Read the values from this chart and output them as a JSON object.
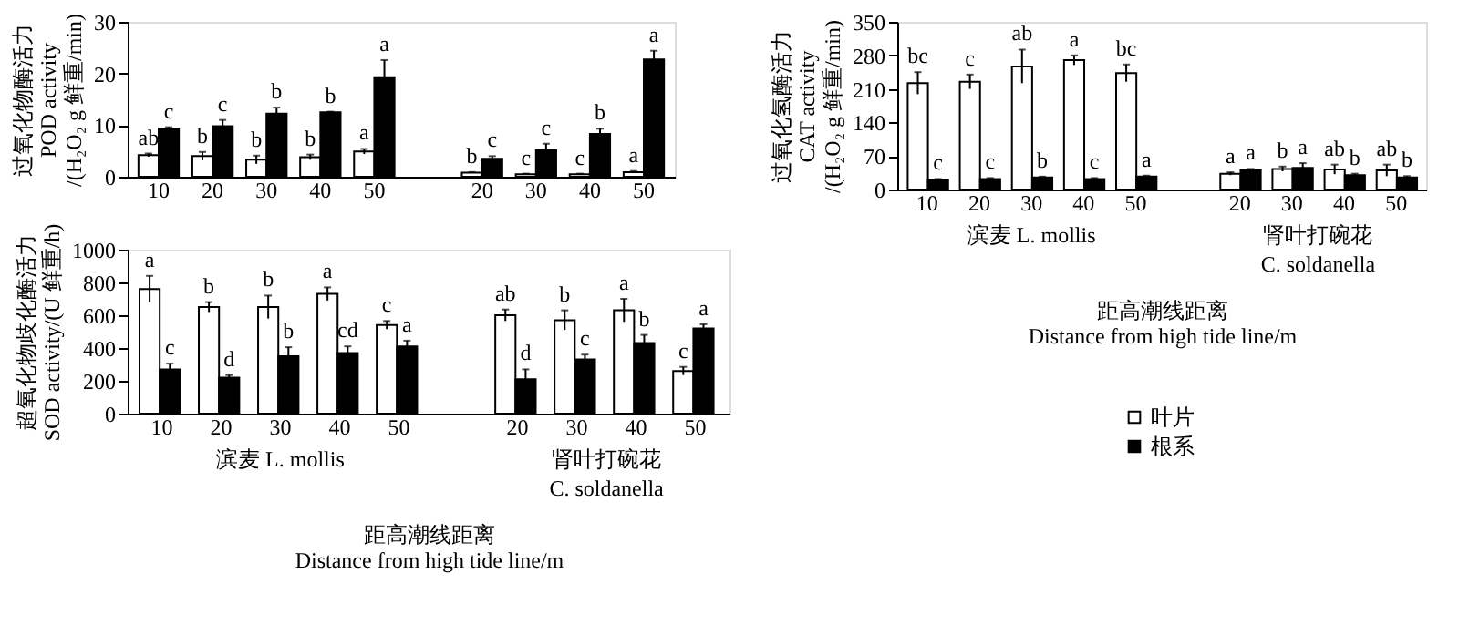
{
  "chart_data": [
    {
      "type": "bar",
      "ylabel": "过氧化物酶活力\nPOD activity\n/(H₂O₂ g 鲜重/min)",
      "legend": "bottom",
      "categories": [
        "10",
        "20",
        "30",
        "40",
        "50",
        null,
        "20",
        "30",
        "40",
        "50"
      ],
      "ylim": [
        0,
        30
      ],
      "yticks": [
        0,
        10,
        20,
        30
      ],
      "series": [
        {
          "name": "叶片",
          "color": "#ffffff",
          "values": [
            4.2,
            4.0,
            3.3,
            3.8,
            4.9,
            null,
            0.8,
            0.5,
            0.5,
            0.9
          ],
          "errors": [
            0.3,
            0.8,
            0.8,
            0.5,
            0.5,
            null,
            0.1,
            0.1,
            0.1,
            0.2
          ],
          "value_labels": [
            "ab",
            "b",
            "b",
            "b",
            "a",
            null,
            "b",
            "c",
            "c",
            "a"
          ]
        },
        {
          "name": "根系",
          "color": "#000000",
          "values": [
            9.3,
            9.8,
            12.2,
            12.5,
            19.3,
            null,
            3.5,
            5.1,
            8.3,
            22.7
          ],
          "errors": [
            0.3,
            1.2,
            1.2,
            0.1,
            3.3,
            null,
            0.5,
            1.3,
            1.0,
            1.7
          ],
          "value_labels": [
            "c",
            "c",
            "b",
            "b",
            "a",
            null,
            "c",
            "c",
            "b",
            "a"
          ]
        }
      ]
    },
    {
      "type": "bar",
      "ylabel": "过氧化氢酶活力\nCAT activity\n/(H₂O₂ g 鲜重/min)",
      "xlabel": "距高潮线距离\nDistance from high tide line/m",
      "categories": [
        "10",
        "20",
        "30",
        "40",
        "50",
        null,
        "20",
        "30",
        "40",
        "50"
      ],
      "ylim": [
        0,
        350
      ],
      "yticks": [
        0,
        70,
        140,
        210,
        280,
        350
      ],
      "annotations": [
        "滨麦 L. mollis",
        "肾叶打碗花\nC. soldanella"
      ],
      "series": [
        {
          "name": "叶片",
          "color": "#ffffff",
          "values": [
            222,
            225,
            257,
            270,
            243,
            null,
            33,
            43,
            42,
            40
          ],
          "errors": [
            23,
            15,
            35,
            10,
            18,
            null,
            3,
            5,
            10,
            12
          ],
          "value_labels": [
            "bc",
            "c",
            "ab",
            "a",
            "bc",
            null,
            "a",
            "b",
            "ab",
            "ab"
          ]
        },
        {
          "name": "根系",
          "color": "#000000",
          "values": [
            20,
            22,
            25,
            22,
            27,
            null,
            40,
            45,
            30,
            25
          ],
          "errors": [
            2,
            2,
            2,
            2,
            2,
            null,
            3,
            10,
            3,
            3
          ],
          "value_labels": [
            "c",
            "c",
            "b",
            "c",
            "a",
            null,
            "a",
            "a",
            "b",
            "b"
          ]
        }
      ]
    },
    {
      "type": "bar",
      "ylabel": "超氧化物歧化酶活力\nSOD activity/(U 鲜重/h)",
      "xlabel": "距高潮线距离\nDistance from high tide line/m",
      "categories": [
        "10",
        "20",
        "30",
        "40",
        "50",
        null,
        "20",
        "30",
        "40",
        "50"
      ],
      "ylim": [
        0,
        1000
      ],
      "yticks": [
        0,
        200,
        400,
        600,
        800,
        1000
      ],
      "annotations": [
        "滨麦 L. mollis",
        "肾叶打碗花\nC. soldanella"
      ],
      "series": [
        {
          "name": "叶片",
          "color": "#ffffff",
          "values": [
            760,
            650,
            650,
            730,
            540,
            null,
            600,
            570,
            630,
            260
          ],
          "errors": [
            80,
            30,
            70,
            40,
            25,
            null,
            35,
            60,
            70,
            25
          ],
          "value_labels": [
            "a",
            "b",
            "b",
            "a",
            "c",
            null,
            "ab",
            "b",
            "a",
            "c"
          ]
        },
        {
          "name": "根系",
          "color": "#000000",
          "values": [
            270,
            220,
            350,
            370,
            410,
            null,
            210,
            330,
            430,
            520
          ],
          "errors": [
            35,
            15,
            55,
            40,
            35,
            null,
            60,
            30,
            50,
            25
          ],
          "value_labels": [
            "c",
            "d",
            "b",
            "cd",
            "a",
            null,
            "d",
            "c",
            "b",
            "a"
          ]
        }
      ]
    }
  ]
}
